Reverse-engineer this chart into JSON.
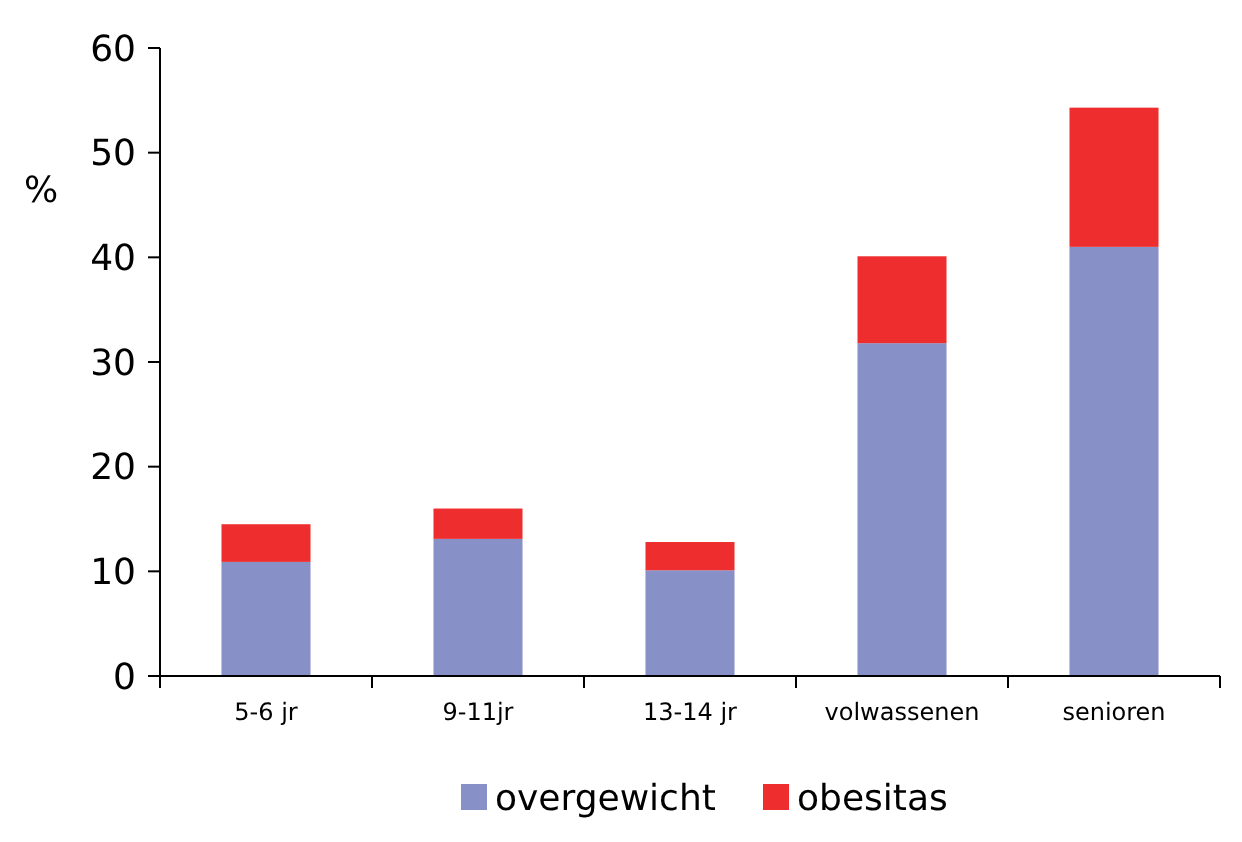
{
  "chart_data": {
    "type": "bar",
    "stacked": true,
    "ylabel": "%",
    "categories": [
      "5-6 jr",
      "9-11jr",
      "13-14 jr",
      "volwassenen",
      "senioren"
    ],
    "series": [
      {
        "name": "overgewicht",
        "color": "#8890c8",
        "values": [
          10.9,
          13.1,
          10.1,
          31.8,
          41
        ]
      },
      {
        "name": "obesitas",
        "color": "#ee2e2e",
        "values": [
          3.6,
          2.9,
          2.7,
          8.3,
          13.3
        ]
      }
    ],
    "ylim": [
      0,
      60
    ],
    "yticks": [
      0,
      10,
      20,
      30,
      40,
      50,
      60
    ],
    "legend": "bottom",
    "grid": false
  }
}
